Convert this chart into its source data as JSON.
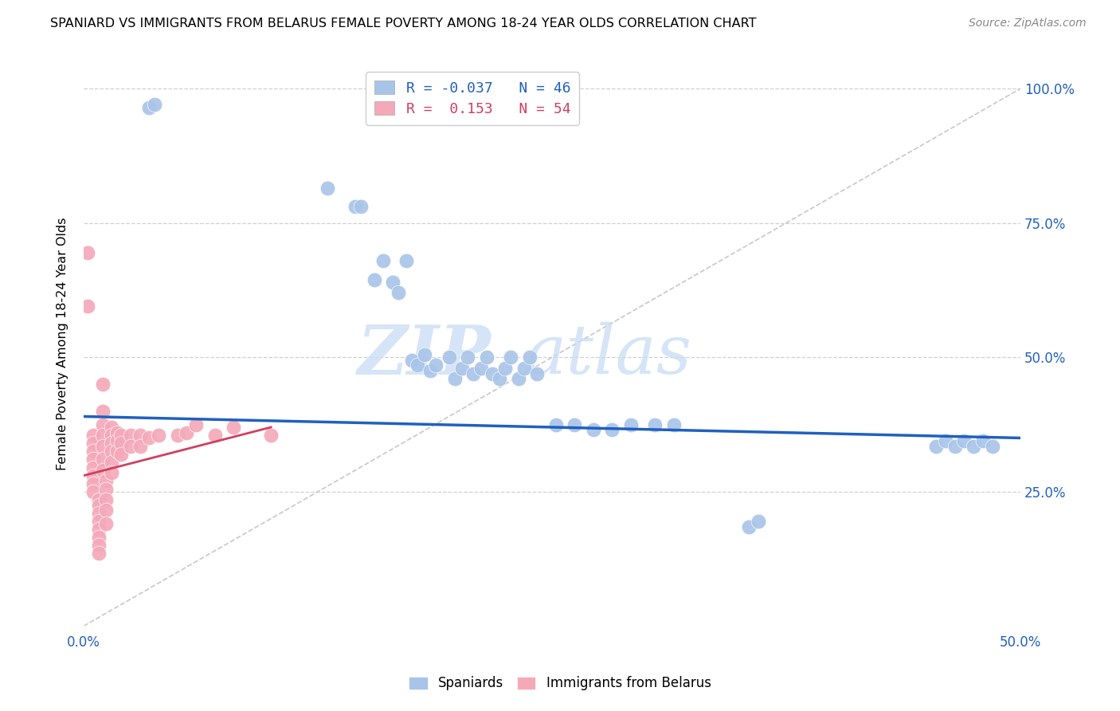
{
  "title": "SPANIARD VS IMMIGRANTS FROM BELARUS FEMALE POVERTY AMONG 18-24 YEAR OLDS CORRELATION CHART",
  "source": "Source: ZipAtlas.com",
  "ylabel": "Female Poverty Among 18-24 Year Olds",
  "xlim": [
    0.0,
    0.5
  ],
  "ylim": [
    0.0,
    1.05
  ],
  "legend_R_blue": "-0.037",
  "legend_N_blue": "46",
  "legend_R_pink": "0.153",
  "legend_N_pink": "54",
  "blue_color": "#a8c4e8",
  "pink_color": "#f4a8b8",
  "blue_line_color": "#2060c0",
  "pink_line_color": "#d04060",
  "diagonal_color": "#c8c8c8",
  "watermark_zip": "ZIP",
  "watermark_atlas": "atlas",
  "blue_scatter_x": [
    0.035,
    0.038,
    0.13,
    0.145,
    0.148,
    0.155,
    0.16,
    0.165,
    0.168,
    0.172,
    0.175,
    0.178,
    0.182,
    0.185,
    0.188,
    0.195,
    0.198,
    0.202,
    0.205,
    0.208,
    0.212,
    0.215,
    0.218,
    0.222,
    0.225,
    0.228,
    0.232,
    0.235,
    0.238,
    0.242,
    0.252,
    0.262,
    0.272,
    0.282,
    0.292,
    0.305,
    0.315,
    0.355,
    0.36,
    0.455,
    0.46,
    0.465,
    0.47,
    0.475,
    0.48,
    0.485
  ],
  "blue_scatter_y": [
    0.965,
    0.97,
    0.815,
    0.78,
    0.78,
    0.645,
    0.68,
    0.64,
    0.62,
    0.68,
    0.495,
    0.485,
    0.505,
    0.475,
    0.485,
    0.5,
    0.46,
    0.48,
    0.5,
    0.47,
    0.48,
    0.5,
    0.47,
    0.46,
    0.48,
    0.5,
    0.46,
    0.48,
    0.5,
    0.47,
    0.375,
    0.375,
    0.365,
    0.365,
    0.375,
    0.375,
    0.375,
    0.185,
    0.195,
    0.335,
    0.345,
    0.335,
    0.345,
    0.335,
    0.345,
    0.335
  ],
  "pink_scatter_x": [
    0.002,
    0.002,
    0.005,
    0.005,
    0.005,
    0.005,
    0.005,
    0.005,
    0.005,
    0.005,
    0.008,
    0.008,
    0.008,
    0.008,
    0.008,
    0.008,
    0.008,
    0.008,
    0.01,
    0.01,
    0.01,
    0.01,
    0.01,
    0.01,
    0.01,
    0.012,
    0.012,
    0.012,
    0.012,
    0.012,
    0.015,
    0.015,
    0.015,
    0.015,
    0.015,
    0.015,
    0.018,
    0.018,
    0.018,
    0.02,
    0.02,
    0.02,
    0.025,
    0.025,
    0.03,
    0.03,
    0.035,
    0.04,
    0.05,
    0.055,
    0.06,
    0.07,
    0.08,
    0.1
  ],
  "pink_scatter_y": [
    0.695,
    0.595,
    0.355,
    0.34,
    0.325,
    0.31,
    0.295,
    0.28,
    0.265,
    0.25,
    0.235,
    0.225,
    0.21,
    0.195,
    0.18,
    0.165,
    0.15,
    0.135,
    0.45,
    0.4,
    0.375,
    0.355,
    0.335,
    0.31,
    0.29,
    0.27,
    0.255,
    0.235,
    0.215,
    0.19,
    0.37,
    0.355,
    0.34,
    0.325,
    0.305,
    0.285,
    0.36,
    0.345,
    0.325,
    0.355,
    0.34,
    0.32,
    0.355,
    0.335,
    0.355,
    0.335,
    0.35,
    0.355,
    0.355,
    0.36,
    0.375,
    0.355,
    0.37,
    0.355
  ],
  "blue_trend_x": [
    0.0,
    0.5
  ],
  "blue_trend_y": [
    0.39,
    0.35
  ],
  "pink_trend_x": [
    0.0,
    0.1
  ],
  "pink_trend_y": [
    0.28,
    0.37
  ],
  "xtick_positions": [
    0.0,
    0.5
  ],
  "xtick_labels": [
    "0.0%",
    "50.0%"
  ],
  "ytick_positions": [
    0.25,
    0.5,
    0.75,
    1.0
  ],
  "ytick_labels": [
    "25.0%",
    "50.0%",
    "75.0%",
    "100.0%"
  ]
}
